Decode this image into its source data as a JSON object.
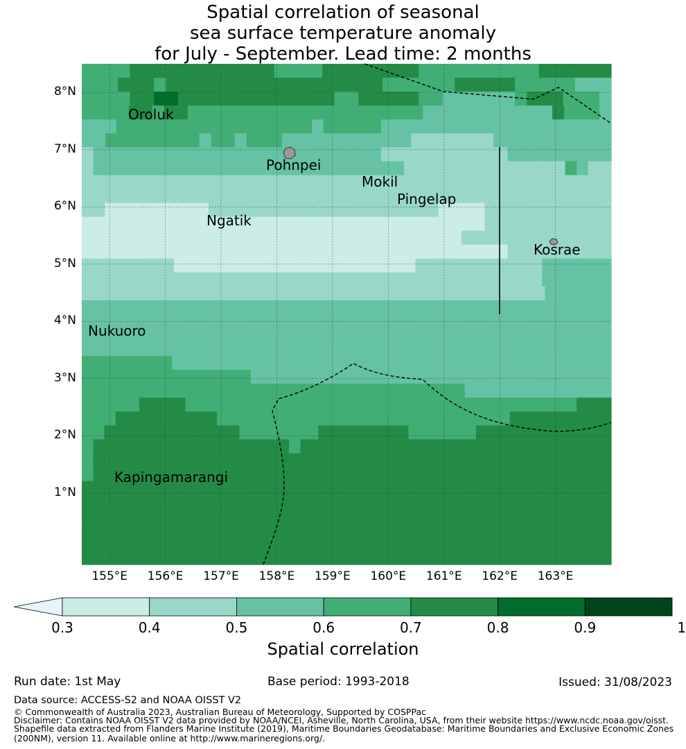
{
  "title": {
    "line1": "Spatial correlation of seasonal",
    "line2": "sea surface temperature anomaly",
    "line3": "for July - September. Lead time: 2 months"
  },
  "map": {
    "lat_labels": [
      "8°N",
      "7°N",
      "6°N",
      "5°N",
      "4°N",
      "3°N",
      "2°N",
      "1°N"
    ],
    "lon_labels": [
      "155°E",
      "156°E",
      "157°E",
      "158°E",
      "159°E",
      "160°E",
      "161°E",
      "162°E",
      "163°E"
    ],
    "places": [
      {
        "name": "Oroluk",
        "lon": 155.8,
        "lat": 7.6
      },
      {
        "name": "Pohnpei",
        "lon": 158.2,
        "lat": 6.9
      },
      {
        "name": "Mokil",
        "lon": 159.8,
        "lat": 6.4
      },
      {
        "name": "Pingelap",
        "lon": 160.7,
        "lat": 6.2
      },
      {
        "name": "Ngatik",
        "lon": 157.2,
        "lat": 5.6
      },
      {
        "name": "Kosrae",
        "lon": 163.0,
        "lat": 5.3
      },
      {
        "name": "Nukuoro",
        "lon": 155.0,
        "lat": 3.8
      },
      {
        "name": "Kapingamarangi",
        "lon": 154.9,
        "lat": 1.1
      }
    ],
    "grid_rows_north_to_south": [
      "ccccddddddddddddccccddddddddccccccccccdddddd",
      "cccdddcddddddddddddddddddccccccdddddcccccbbb",
      "ccccddeedddddddddddddccdddddccbbbbbbcdddcccb",
      "ccccddcddccccccccccccccccccccbbbbbbbbbbbdcccb",
      "bbbcccccccccccccccccbcccccbbbbbbbbbbbbbbbbbbbb",
      "bbccccccccbccbcccbbbbbbbbbbbaaaaaaabbbbbbbbbb",
      "abbbbbbbbbbbbbbbbbbbbbbbbbaaaaaaaaaaabbbbbbbbb",
      "abbbbbbbbbbbbbbbbbbbbbbbbbbbaaaaaaaaaaaaaacbaa",
      "aaaaaaaaaaaaaaaaaaaaaaaaaaaaaaaaaaaaaaaaaaaaaa",
      "aaaaaaaaaaaaaaaaaaaaaaaaaaaaaaaaaaaaaaaaaaaaaa",
      "aa000000000aaaaaaaaaaaaaaaaaaaa0000aaaaaaaaaaa",
      "00000000000000000000000000000000000aaaaaaaaaaa",
      "000000000000000000000000000000000aaaaaaaaaaaaa",
      "0000000000000000000000000000000000000aaaaaaaaa",
      "aaaaaaaa000000000000000000000aaaaaaaaaaabbbbbb",
      "aaaaaaaaaaaaaaaaaaaaaaaaaaaaaaaaaaaaaaaabbbbbb",
      "aaaaaaaaaaaaaaaaaaaaaaaaaaaaaaaaaaaaaaaaaabbbbbb",
      "bbbbbbbbbbbbbbbbbbbbbbbbbbbbbbbbbbbbbbbbbbbbbbb",
      "bbbbbbbbbbbbbbbbbbbbbbbbbbbbbbbbbbbbbbbbbbbbbbb",
      "bbbbbbbbbbbbbbbbbbbbbbbbbbbbbbbbbbbbbbbbbbbbbbb",
      "bbbbbbbbbbbbbbbbbbbbbbbbbbbbbbbbbbbbbbbbbbbbbbb",
      "ccccccccbbbbbbbbbbbbbbbbbbbbbbbbbbbbbbbbbbbbbbb",
      "cccccccccccccccbbbbbbbbbbbbbbbbbbbbbbbbbbbbbbbb",
      "ccccccccccccccccccccccccccccccccccbbbbbbbbbbbbb",
      "cccccddddccccccccccccccccccccccccccccccccccddd",
      "cccdddddddddccccccccccccccccccccccccccddddddddd",
      "ccddddddddddddcccccccddddddddccccccdddddddddddd",
      "cdddddddddddddddddcddddddddddddddddddddddddddd",
      "cdddddddddddddddddddddddddddddddddddddddddddddd",
      "cddddddddddddddddddddddddddddddddddddddddddddd",
      "dddddddddddddddddddddddddddddddddddddddddddddd",
      "dddddddddddddddddddddddddddddddddddddddddddddd",
      "dddddddddddddddddddddddddddddddddddddddddddddd",
      "dddddddddddddddddddddddddddddddddddddddddddddd",
      "dddddddddddddddddddddddddddddddddddddddddddddd",
      "dddddddddddddddddddddddddddddddddddddddddddddd"
    ],
    "class_colors": {
      "0": "#ccece6",
      "a": "#99d8c9",
      "b": "#66c2a4",
      "c": "#41ae76",
      "d": "#238b45",
      "e": "#006d2c"
    },
    "boundary_color": "#000000"
  },
  "colorbar": {
    "ticks": [
      "0.3",
      "0.4",
      "0.5",
      "0.6",
      "0.7",
      "0.8",
      "0.9",
      "1"
    ],
    "colors": [
      "#ccece6",
      "#99d8c9",
      "#66c2a4",
      "#41ae76",
      "#238b45",
      "#006d2c",
      "#00441b"
    ],
    "extend_color": "#e5f5f9",
    "label": "Spatial correlation"
  },
  "footer": {
    "run_date": "Run date: 1st May",
    "base_period": "Base period: 1993-2018",
    "issued": "Issued: 31/08/2023",
    "data_source": "Data source: ACCESS-S2 and NOAA OISST V2",
    "copyright": "© Commonwealth of Australia 2023, Australian Bureau of Meteorology, Supported by COSPPac",
    "disclaimer1": "Disclaimer: Contains NOAA OISST V2 data provided by NOAA/NCEI, Asheville, North Carolina, USA, from their website https://www.ncdc.noaa.gov/oisst.",
    "disclaimer2": "Shapefile data extracted from Flanders Marine Institute (2019), Maritime Boundaries Geodatabase: Maritime Boundaries and Exclusive Economic Zones",
    "disclaimer3": "(200NM), version 11. Available online at http://www.marineregions.org/."
  }
}
